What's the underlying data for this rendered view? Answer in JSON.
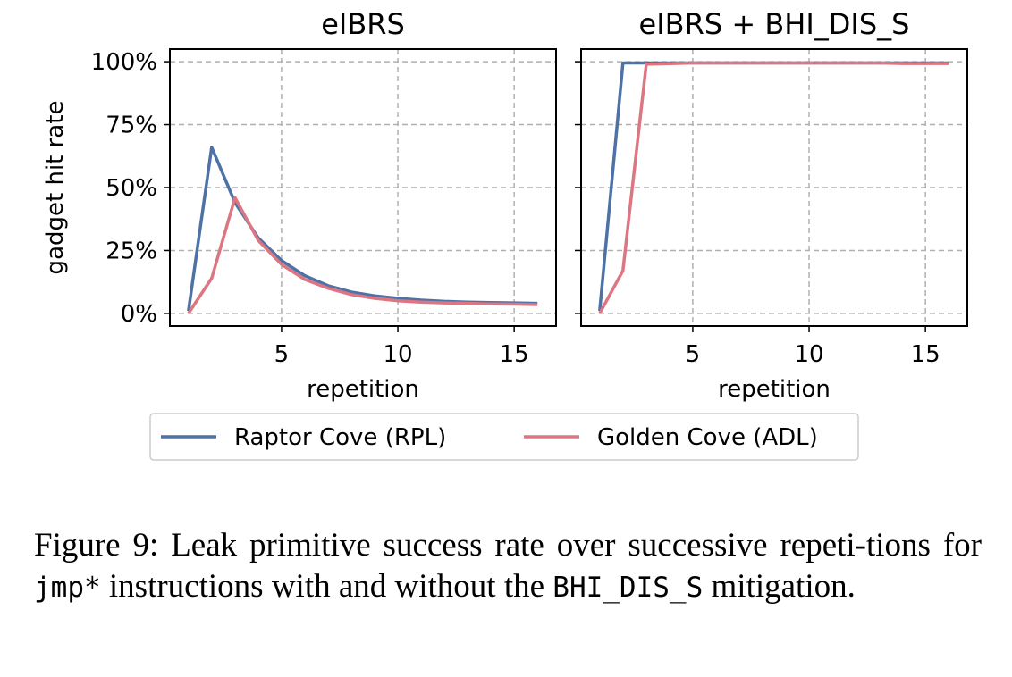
{
  "chart_data": {
    "type": "line",
    "y_axis": {
      "label": "gadget hit rate",
      "ticks": [
        0,
        25,
        50,
        75,
        100
      ],
      "tick_labels": [
        "0%",
        "25%",
        "50%",
        "75%",
        "100%"
      ],
      "ylim": [
        -5,
        105
      ]
    },
    "x_axis": {
      "label": "repetition",
      "ticks": [
        5,
        10,
        15
      ],
      "tick_labels": [
        "5",
        "10",
        "15"
      ],
      "xlim": [
        0.2,
        16.8
      ]
    },
    "grid": true,
    "legend": {
      "placement": "bottom-center",
      "entries": [
        "Raptor Cove (RPL)",
        "Golden Cove (ADL)"
      ]
    },
    "colors": {
      "Raptor Cove (RPL)": "#4e72a6",
      "Golden Cove (ADL)": "#dc7682"
    },
    "panels": [
      {
        "title": "eIBRS",
        "series": [
          {
            "name": "Raptor Cove (RPL)",
            "x": [
              1,
              2,
              3,
              4,
              5,
              6,
              7,
              8,
              9,
              10,
              11,
              12,
              13,
              14,
              15,
              16
            ],
            "y": [
              1,
              66,
              44,
              30,
              21,
              15,
              11,
              8.5,
              7,
              6,
              5.3,
              4.8,
              4.5,
              4.3,
              4.2,
              4
            ]
          },
          {
            "name": "Golden Cove (ADL)",
            "x": [
              1,
              2,
              3,
              4,
              5,
              6,
              7,
              8,
              9,
              10,
              11,
              12,
              13,
              14,
              15,
              16
            ],
            "y": [
              0,
              14,
              46,
              29,
              19.5,
              13.5,
              10,
              7.5,
              6,
              5,
              4.5,
              4.2,
              4,
              3.8,
              3.7,
              3.5
            ]
          }
        ]
      },
      {
        "title": "eIBRS + BHI_DIS_S",
        "series": [
          {
            "name": "Raptor Cove (RPL)",
            "x": [
              1,
              2,
              3,
              4,
              5,
              6,
              7,
              8,
              9,
              10,
              11,
              12,
              13,
              14,
              15,
              16
            ],
            "y": [
              1,
              99.5,
              99.5,
              99.5,
              99.5,
              99.5,
              99.5,
              99.5,
              99.5,
              99.5,
              99.5,
              99.5,
              99.5,
              99.5,
              99.5,
              99.5
            ]
          },
          {
            "name": "Golden Cove (ADL)",
            "x": [
              1,
              2,
              3,
              4,
              5,
              6,
              7,
              8,
              9,
              10,
              11,
              12,
              13,
              14,
              15,
              16
            ],
            "y": [
              0,
              17,
              99,
              99.2,
              99.5,
              99.5,
              99.5,
              99.5,
              99.5,
              99.5,
              99.5,
              99.5,
              99.5,
              99.3,
              99.3,
              99.3
            ]
          }
        ]
      }
    ]
  },
  "caption": {
    "part1": "Figure 9: Leak primitive success rate over successive repeti-tions for ",
    "code1": "jmp*",
    "part2": " instructions with and without the ",
    "code2": "BHI_DIS_S",
    "part3": " mitigation."
  }
}
